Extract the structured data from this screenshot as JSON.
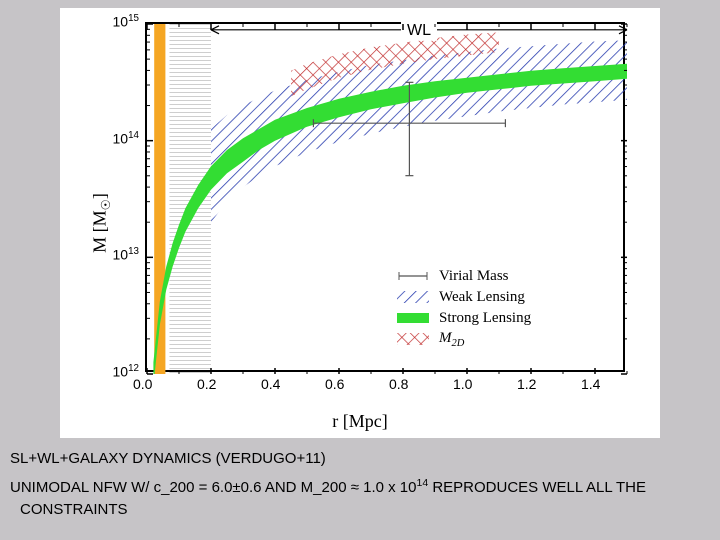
{
  "chart": {
    "type": "line-with-bands",
    "background_color": "#ffffff",
    "page_background": "#c6c4c7",
    "ylabel_html": "M [M<sub>&#9737;</sub>]",
    "xlabel": "r [Mpc]",
    "label_fontsize": 18,
    "tick_fontsize": 14,
    "xlim": [
      0.0,
      1.5
    ],
    "xticks": [
      0.0,
      0.2,
      0.4,
      0.6,
      0.8,
      1.0,
      1.2,
      1.4
    ],
    "xtick_labels": [
      "0.0",
      "0.2",
      "0.4",
      "0.6",
      "0.8",
      "1.0",
      "1.2",
      "1.4"
    ],
    "yscale": "log",
    "ylim_exp": [
      12,
      15
    ],
    "yticks_exp": [
      12,
      13,
      14,
      15
    ],
    "ytick_labels": [
      "10^12",
      "10^13",
      "10^14",
      "10^15"
    ],
    "wl_annotation": {
      "label": "WL",
      "x_start": 0.2,
      "x_end": 1.5,
      "y_exp": 14.95
    },
    "orange_band": {
      "x_center": 0.04,
      "width": 0.035,
      "color": "#f5a623"
    },
    "grey_hatch": {
      "x_start": 0.07,
      "x_end": 0.2,
      "color": "#9e9e9e"
    },
    "strong_lensing_band": {
      "color": "#33dd33",
      "points_upper": [
        [
          0.02,
          12.1
        ],
        [
          0.04,
          12.62
        ],
        [
          0.06,
          12.92
        ],
        [
          0.08,
          13.12
        ],
        [
          0.1,
          13.28
        ],
        [
          0.12,
          13.42
        ],
        [
          0.16,
          13.62
        ],
        [
          0.2,
          13.78
        ],
        [
          0.25,
          13.92
        ],
        [
          0.3,
          14.02
        ],
        [
          0.35,
          14.1
        ],
        [
          0.4,
          14.18
        ],
        [
          0.5,
          14.28
        ],
        [
          0.6,
          14.36
        ],
        [
          0.7,
          14.42
        ],
        [
          0.8,
          14.47
        ],
        [
          0.9,
          14.51
        ],
        [
          1.0,
          14.54
        ],
        [
          1.1,
          14.57
        ],
        [
          1.2,
          14.6
        ],
        [
          1.3,
          14.62
        ],
        [
          1.4,
          14.64
        ],
        [
          1.5,
          14.66
        ]
      ],
      "points_lower": [
        [
          0.02,
          11.9
        ],
        [
          0.04,
          12.42
        ],
        [
          0.06,
          12.72
        ],
        [
          0.08,
          12.92
        ],
        [
          0.1,
          13.08
        ],
        [
          0.12,
          13.22
        ],
        [
          0.16,
          13.42
        ],
        [
          0.2,
          13.58
        ],
        [
          0.25,
          13.72
        ],
        [
          0.3,
          13.82
        ],
        [
          0.35,
          13.92
        ],
        [
          0.4,
          14.0
        ],
        [
          0.5,
          14.12
        ],
        [
          0.6,
          14.2
        ],
        [
          0.7,
          14.27
        ],
        [
          0.8,
          14.32
        ],
        [
          0.9,
          14.37
        ],
        [
          1.0,
          14.41
        ],
        [
          1.1,
          14.44
        ],
        [
          1.2,
          14.47
        ],
        [
          1.3,
          14.49
        ],
        [
          1.4,
          14.51
        ],
        [
          1.5,
          14.53
        ]
      ]
    },
    "weak_lensing_hatch": {
      "color": "#2b3fb0",
      "points_upper": [
        [
          0.2,
          14.1
        ],
        [
          0.25,
          14.22
        ],
        [
          0.3,
          14.3
        ],
        [
          0.35,
          14.37
        ],
        [
          0.4,
          14.43
        ],
        [
          0.5,
          14.52
        ],
        [
          0.6,
          14.59
        ],
        [
          0.7,
          14.65
        ],
        [
          0.8,
          14.69
        ],
        [
          0.9,
          14.73
        ],
        [
          1.0,
          14.76
        ],
        [
          1.1,
          14.79
        ],
        [
          1.2,
          14.81
        ],
        [
          1.3,
          14.83
        ],
        [
          1.4,
          14.85
        ],
        [
          1.5,
          14.86
        ]
      ],
      "points_lower": [
        [
          0.2,
          13.3
        ],
        [
          0.25,
          13.48
        ],
        [
          0.3,
          13.6
        ],
        [
          0.35,
          13.7
        ],
        [
          0.4,
          13.78
        ],
        [
          0.5,
          13.9
        ],
        [
          0.6,
          13.99
        ],
        [
          0.7,
          14.06
        ],
        [
          0.8,
          14.12
        ],
        [
          0.9,
          14.17
        ],
        [
          1.0,
          14.21
        ],
        [
          1.1,
          14.25
        ],
        [
          1.2,
          14.28
        ],
        [
          1.3,
          14.31
        ],
        [
          1.4,
          14.33
        ],
        [
          1.5,
          14.35
        ]
      ]
    },
    "m2d_hatch": {
      "color": "#c23030",
      "points_upper": [
        [
          0.45,
          14.6
        ],
        [
          0.5,
          14.66
        ],
        [
          0.6,
          14.74
        ],
        [
          0.7,
          14.8
        ],
        [
          0.8,
          14.84
        ],
        [
          0.9,
          14.88
        ],
        [
          1.0,
          14.91
        ],
        [
          1.1,
          14.93
        ]
      ],
      "points_lower": [
        [
          0.45,
          14.38
        ],
        [
          0.5,
          14.44
        ],
        [
          0.6,
          14.54
        ],
        [
          0.7,
          14.61
        ],
        [
          0.8,
          14.66
        ],
        [
          0.9,
          14.7
        ],
        [
          1.0,
          14.73
        ],
        [
          1.1,
          14.76
        ]
      ]
    },
    "virial_point": {
      "x": 0.82,
      "y_exp": 14.15,
      "x_err": 0.3,
      "y_err_up": 0.35,
      "y_err_dn": 0.45,
      "color": "#555555"
    },
    "legend": {
      "entries": [
        {
          "key": "virial",
          "label": "Virial Mass",
          "color": "#555555"
        },
        {
          "key": "weak",
          "label": "Weak Lensing",
          "color": "#2b3fb0"
        },
        {
          "key": "strong",
          "label": "Strong Lensing",
          "color": "#33dd33"
        },
        {
          "key": "m2d",
          "label_html": "<i>M</i><sub><i>2D</i></sub>",
          "color": "#c23030"
        }
      ],
      "fontsize": 15
    }
  },
  "caption": {
    "line1": "SL+WL+GALAXY DYNAMICS (VERDUGO+11)",
    "line2_html": "UNIMODAL NFW W/ c_200 = 6.0&plusmn;0.6 AND M_200 &approx; 1.0 x 10<sup>14</sup> REPRODUCES WELL ALL THE CONSTRAINTS",
    "fontsize": 15,
    "font_family": "Comic Sans MS"
  }
}
